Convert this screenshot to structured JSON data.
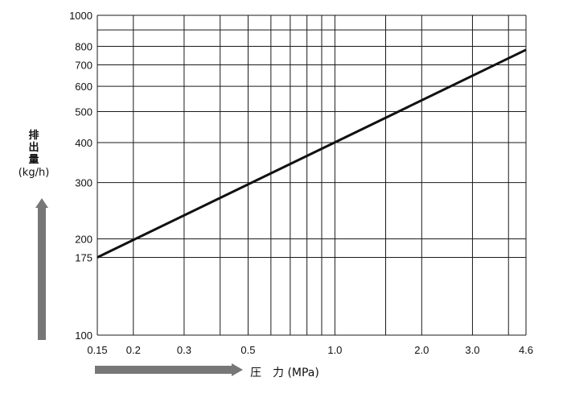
{
  "chart_data": {
    "type": "line",
    "title": "",
    "xlabel": "圧　力 (MPa)",
    "ylabel_lines": [
      "排",
      "出",
      "量",
      "(kg/h)"
    ],
    "x_scale": "log",
    "y_scale": "log",
    "xlim": [
      0.15,
      4.6
    ],
    "ylim": [
      100,
      1000
    ],
    "x_tick_labels": [
      "0.15",
      "0.2",
      "0.3",
      "0.5",
      "1.0",
      "2.0",
      "3.0",
      "4.6"
    ],
    "x_tick_values": [
      0.15,
      0.2,
      0.3,
      0.5,
      1.0,
      2.0,
      3.0,
      4.6
    ],
    "x_grid_values": [
      0.15,
      0.2,
      0.3,
      0.4,
      0.5,
      0.6,
      0.7,
      0.8,
      0.9,
      1.0,
      1.5,
      2.0,
      3.0,
      4.0,
      4.6
    ],
    "y_tick_labels": [
      "100",
      "175",
      "200",
      "300",
      "400",
      "500",
      "600",
      "700",
      "800",
      "1000"
    ],
    "y_tick_values": [
      100,
      175,
      200,
      300,
      400,
      500,
      600,
      700,
      800,
      1000
    ],
    "y_grid_values": [
      100,
      175,
      200,
      300,
      400,
      500,
      600,
      700,
      800,
      900,
      1000
    ],
    "grid": true,
    "series": [
      {
        "x": [
          0.15,
          4.6
        ],
        "y": [
          175,
          780
        ],
        "color": "#111111"
      }
    ]
  }
}
